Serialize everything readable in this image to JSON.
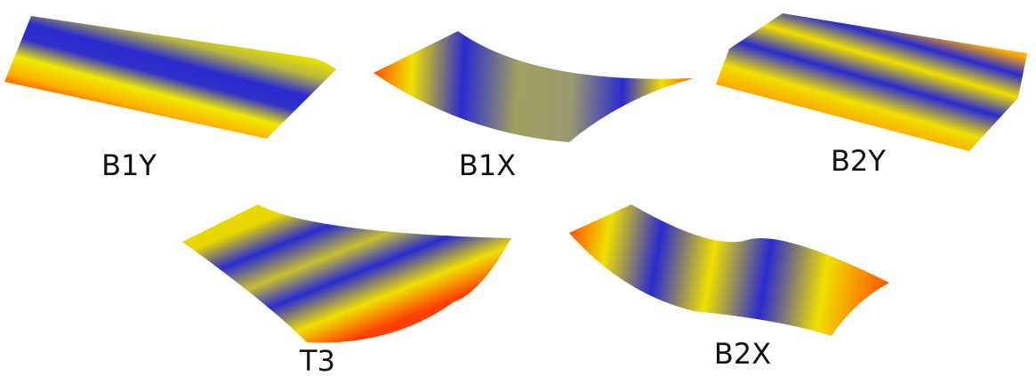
{
  "labels": [
    "B1Y",
    "B1X",
    "B2Y",
    "T3",
    "B2X"
  ]
}
